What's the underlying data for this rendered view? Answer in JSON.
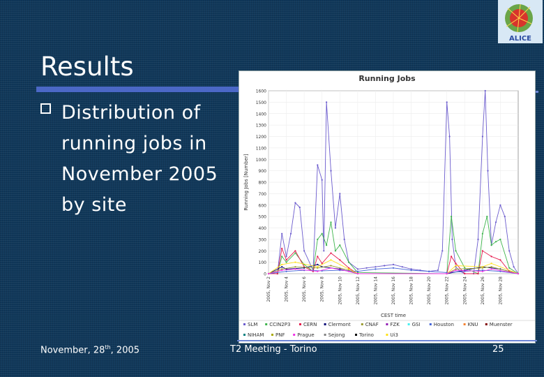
{
  "slide": {
    "title": "Results",
    "bullet": "Distribution of running jobs in November 2005 by site"
  },
  "footer": {
    "date": "November, 28",
    "date_sup": "th",
    "date_year": ", 2005",
    "meeting": "T2 Meeting - Torino",
    "page": "25"
  },
  "logo": {
    "text": "ALICE"
  },
  "chart_data": {
    "type": "line",
    "title": "Running Jobs",
    "ylabel": "Running Jobs [Number]",
    "xlabel": "CEST time",
    "ylim": [
      0,
      1600
    ],
    "yticks": [
      "0",
      "100",
      "200",
      "300",
      "400",
      "500",
      "600",
      "700",
      "800",
      "900",
      "1000",
      "1100",
      "1200",
      "1300",
      "1400",
      "1500",
      "1600"
    ],
    "xlim": [
      0,
      28
    ],
    "xticks": [
      {
        "x": 0,
        "label": "2005, Nov 2"
      },
      {
        "x": 2,
        "label": "2005, Nov 4"
      },
      {
        "x": 4,
        "label": "2005, Nov 6"
      },
      {
        "x": 6,
        "label": "2005, Nov 8"
      },
      {
        "x": 8,
        "label": "2005, Nov 10"
      },
      {
        "x": 10,
        "label": "2005, Nov 12"
      },
      {
        "x": 12,
        "label": "2005, Nov 14"
      },
      {
        "x": 14,
        "label": "2005, Nov 16"
      },
      {
        "x": 16,
        "label": "2005, Nov 18"
      },
      {
        "x": 18,
        "label": "2005, Nov 20"
      },
      {
        "x": 20,
        "label": "2005, Nov 22"
      },
      {
        "x": 22,
        "label": "2005, Nov 24"
      },
      {
        "x": 24,
        "label": "2005, Nov 26"
      },
      {
        "x": 26,
        "label": "2005, Nov 28"
      }
    ],
    "legend": [
      "SLM",
      "CCIN2P3",
      "CERN",
      "Clermont",
      "CNAF",
      "FZK",
      "GSI",
      "Houston",
      "KNU",
      "Muenster",
      "NIHAM",
      "PNF",
      "Prague",
      "Sejong",
      "Torino",
      "Ui3"
    ],
    "series": [
      {
        "name": "SLM",
        "color": "#6a5acd",
        "x": [
          0,
          1,
          1.5,
          2,
          2.5,
          3,
          3.5,
          4,
          5,
          5.5,
          6,
          6.2,
          6.5,
          7,
          7.5,
          8,
          8.5,
          9,
          10,
          11,
          12,
          13,
          14,
          15,
          16,
          17,
          18,
          19,
          19.5,
          20,
          20.3,
          20.6,
          21,
          21.5,
          22,
          23,
          23.5,
          24,
          24.3,
          24.6,
          25,
          25.5,
          26,
          26.5,
          27,
          27.5,
          28
        ],
        "y": [
          0,
          0,
          350,
          150,
          350,
          620,
          580,
          200,
          30,
          950,
          820,
          200,
          1500,
          900,
          400,
          700,
          300,
          100,
          40,
          50,
          60,
          70,
          80,
          60,
          40,
          30,
          20,
          30,
          200,
          1500,
          1200,
          300,
          60,
          20,
          0,
          0,
          300,
          1200,
          1600,
          900,
          250,
          450,
          600,
          500,
          200,
          60,
          0
        ]
      },
      {
        "name": "CCIN2P3",
        "color": "#3cb44b",
        "x": [
          0,
          1,
          1.5,
          2,
          3,
          4,
          5,
          5.5,
          6,
          6.5,
          7,
          7.5,
          8,
          9,
          10,
          20,
          20.5,
          21,
          22,
          23.5,
          24,
          24.5,
          25,
          25.5,
          26,
          27,
          28
        ],
        "y": [
          0,
          0,
          150,
          100,
          180,
          80,
          20,
          300,
          350,
          250,
          450,
          200,
          250,
          100,
          10,
          0,
          500,
          200,
          50,
          0,
          350,
          500,
          250,
          280,
          300,
          50,
          0
        ]
      },
      {
        "name": "CERN",
        "color": "#e6194b",
        "x": [
          0,
          1,
          1.5,
          2,
          3,
          4,
          5,
          5.5,
          6,
          7,
          8,
          9,
          10,
          20,
          20.5,
          21,
          22,
          23.5,
          24,
          25,
          26,
          27,
          28
        ],
        "y": [
          0,
          0,
          220,
          120,
          200,
          60,
          20,
          150,
          90,
          180,
          120,
          50,
          0,
          0,
          150,
          90,
          0,
          0,
          200,
          150,
          120,
          20,
          0
        ]
      },
      {
        "name": "Clermont",
        "color": "#000075",
        "x": [
          0,
          1.5,
          2,
          4,
          5.5,
          6,
          8,
          10,
          20,
          22,
          24,
          26,
          28
        ],
        "y": [
          0,
          60,
          40,
          50,
          80,
          60,
          40,
          0,
          0,
          30,
          60,
          40,
          0
        ]
      },
      {
        "name": "CNAF",
        "color": "#9a9a30",
        "x": [
          0,
          1.5,
          3,
          5.5,
          7,
          9,
          10,
          20,
          21,
          24,
          25,
          28
        ],
        "y": [
          0,
          40,
          60,
          50,
          70,
          30,
          0,
          0,
          40,
          50,
          60,
          0
        ]
      },
      {
        "name": "Houston",
        "color": "#4363d8",
        "x": [
          0,
          2,
          4,
          6,
          8,
          10,
          12,
          14,
          16,
          18,
          20,
          22,
          24,
          26,
          28
        ],
        "y": [
          0,
          20,
          30,
          25,
          30,
          20,
          40,
          50,
          30,
          20,
          10,
          20,
          30,
          20,
          0
        ]
      },
      {
        "name": "Ui3",
        "color": "#ffe119",
        "x": [
          0,
          1.5,
          3,
          5.5,
          7,
          9,
          10,
          20,
          21,
          24,
          25,
          28
        ],
        "y": [
          0,
          80,
          100,
          60,
          120,
          40,
          0,
          0,
          70,
          60,
          90,
          0
        ]
      },
      {
        "name": "Prague",
        "color": "#f032e6",
        "x": [
          0,
          1.5,
          3,
          5.5,
          7,
          9,
          10,
          20,
          21,
          24,
          25,
          28
        ],
        "y": [
          0,
          30,
          40,
          20,
          50,
          20,
          0,
          0,
          30,
          20,
          40,
          0
        ]
      }
    ]
  }
}
